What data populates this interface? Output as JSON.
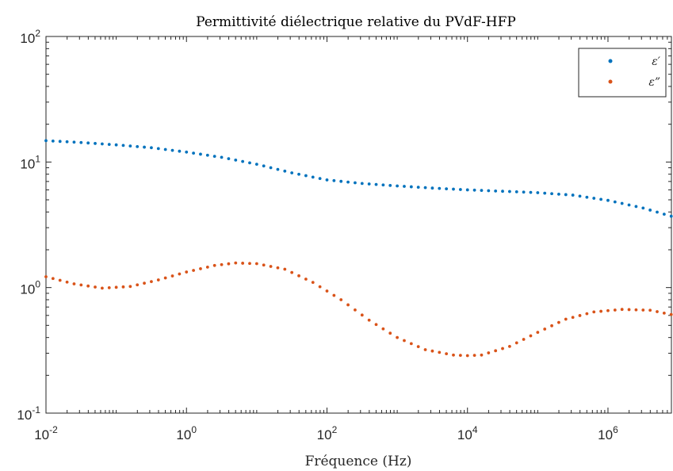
{
  "chart_data": {
    "type": "scatter",
    "title": "Permittivité diélectrique relative du PVdF-HFP",
    "xlabel": "Fréquence (Hz)",
    "ylabel": "",
    "xscale": "log",
    "yscale": "log",
    "xlim": [
      0.01,
      8000000
    ],
    "ylim": [
      0.1,
      100
    ],
    "xticks": [
      {
        "value": 0.01,
        "base": "10",
        "exp": "-2"
      },
      {
        "value": 1,
        "base": "10",
        "exp": "0"
      },
      {
        "value": 100,
        "base": "10",
        "exp": "2"
      },
      {
        "value": 10000,
        "base": "10",
        "exp": "4"
      },
      {
        "value": 1000000,
        "base": "10",
        "exp": "6"
      }
    ],
    "yticks": [
      {
        "value": 0.1,
        "base": "10",
        "exp": "-1"
      },
      {
        "value": 1,
        "base": "10",
        "exp": "0"
      },
      {
        "value": 10,
        "base": "10",
        "exp": "1"
      },
      {
        "value": 100,
        "base": "10",
        "exp": "2"
      }
    ],
    "grid": false,
    "legend_position": "top-right",
    "series": [
      {
        "name": "ε′",
        "color": "#0072BD",
        "x_log10": [
          -2.0,
          -1.5,
          -1.0,
          -0.5,
          0.0,
          0.5,
          1.0,
          1.5,
          2.0,
          2.5,
          3.0,
          3.5,
          4.0,
          4.5,
          5.0,
          5.5,
          6.0,
          6.5,
          6.9
        ],
        "y": [
          14.8,
          14.3,
          13.7,
          13.0,
          12.0,
          10.9,
          9.6,
          8.2,
          7.2,
          6.75,
          6.45,
          6.2,
          6.0,
          5.85,
          5.7,
          5.45,
          4.95,
          4.3,
          3.7
        ]
      },
      {
        "name": "ε”",
        "color": "#D95319",
        "x_log10": [
          -2.0,
          -1.6,
          -1.2,
          -0.8,
          -0.4,
          0.0,
          0.4,
          0.7,
          1.0,
          1.4,
          1.8,
          2.2,
          2.6,
          3.0,
          3.4,
          3.8,
          4.0,
          4.2,
          4.6,
          5.0,
          5.4,
          5.8,
          6.2,
          6.6,
          6.9
        ],
        "y": [
          1.22,
          1.07,
          0.99,
          1.02,
          1.15,
          1.33,
          1.5,
          1.57,
          1.55,
          1.4,
          1.1,
          0.8,
          0.55,
          0.4,
          0.32,
          0.29,
          0.287,
          0.29,
          0.34,
          0.44,
          0.56,
          0.64,
          0.67,
          0.66,
          0.61
        ]
      }
    ]
  }
}
